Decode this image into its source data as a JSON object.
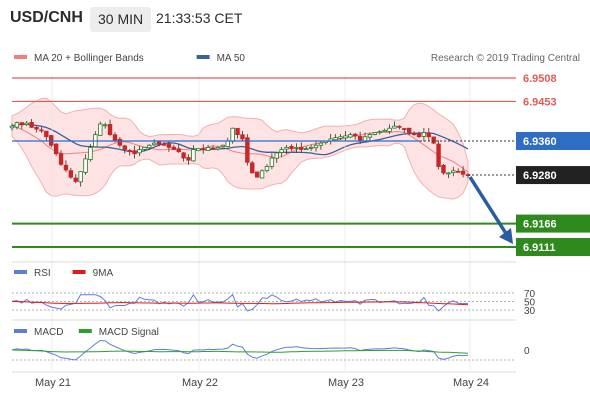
{
  "header": {
    "symbol": "USD/CNH",
    "timeframe": "30 MIN",
    "time": "21:33:53 CET"
  },
  "legend": {
    "main": [
      {
        "name": "MA 20 + Bollinger Bands",
        "color": "#f08080"
      },
      {
        "name": "MA 50",
        "color": "#3d5f9c"
      }
    ],
    "rsi": [
      {
        "name": "RSI",
        "color": "#5b7fd6"
      },
      {
        "name": "9MA",
        "color": "#e01919"
      }
    ],
    "macd": [
      {
        "name": "MACD",
        "color": "#5b7fd6"
      },
      {
        "name": "MACD Signal",
        "color": "#2e9e2e"
      }
    ]
  },
  "copyright": "Research © 2019 Trading Central",
  "chart_data": {
    "type": "candlestick",
    "x_ticks": [
      "May 21",
      "May 22",
      "May 23",
      "May 24"
    ],
    "y_range": [
      6.9111,
      6.9508
    ],
    "levels": [
      {
        "value": 6.9508,
        "label": "6.9508",
        "kind": "resistance",
        "color": "#e05a5a"
      },
      {
        "value": 6.9453,
        "label": "6.9453",
        "kind": "resistance",
        "color": "#e05a5a"
      },
      {
        "value": 6.936,
        "label": "6.9360",
        "kind": "pivot",
        "color": "#2f6cc4"
      },
      {
        "value": 6.928,
        "label": "6.9280",
        "kind": "last",
        "color": "#222222"
      },
      {
        "value": 6.9166,
        "label": "6.9166",
        "kind": "support",
        "color": "#2f8a1e"
      },
      {
        "value": 6.9111,
        "label": "6.9111",
        "kind": "support",
        "color": "#2f8a1e"
      }
    ],
    "close_path": [
      6.9395,
      6.9403,
      6.9398,
      6.9402,
      6.9392,
      6.9388,
      6.9385,
      6.937,
      6.935,
      6.933,
      6.9305,
      6.9292,
      6.9275,
      6.9265,
      6.9288,
      6.9318,
      6.9345,
      6.9375,
      6.94,
      6.9398,
      6.9375,
      6.9362,
      6.935,
      6.934,
      6.9335,
      6.933,
      6.934,
      6.9345,
      6.935,
      6.9355,
      6.9352,
      6.935,
      6.9345,
      6.934,
      6.9335,
      6.932,
      6.9315,
      6.934,
      6.9342,
      6.934,
      6.9345,
      6.9342,
      6.9345,
      6.935,
      6.936,
      6.939,
      6.9375,
      6.9365,
      6.931,
      6.9285,
      6.9275,
      6.929,
      6.93,
      6.932,
      6.9332,
      6.934,
      6.9345,
      6.9342,
      6.9345,
      6.934,
      6.9342,
      6.9345,
      6.935,
      6.9355,
      6.936,
      6.9365,
      6.9368,
      6.937,
      6.9372,
      6.9375,
      6.9372,
      6.936,
      6.937,
      6.9375,
      6.938,
      6.9382,
      6.9385,
      6.939,
      6.9395,
      6.9392,
      6.9388,
      6.938,
      6.9375,
      6.937,
      6.938,
      6.937,
      6.9355,
      6.93,
      6.9285,
      6.9285,
      6.929,
      6.9288,
      6.9282,
      6.928
    ],
    "forecast": {
      "from": 6.928,
      "to": 6.9125,
      "direction": "down"
    },
    "rsi": {
      "levels": [
        70,
        50,
        30
      ]
    },
    "macd": {
      "levels": [
        0
      ]
    }
  }
}
